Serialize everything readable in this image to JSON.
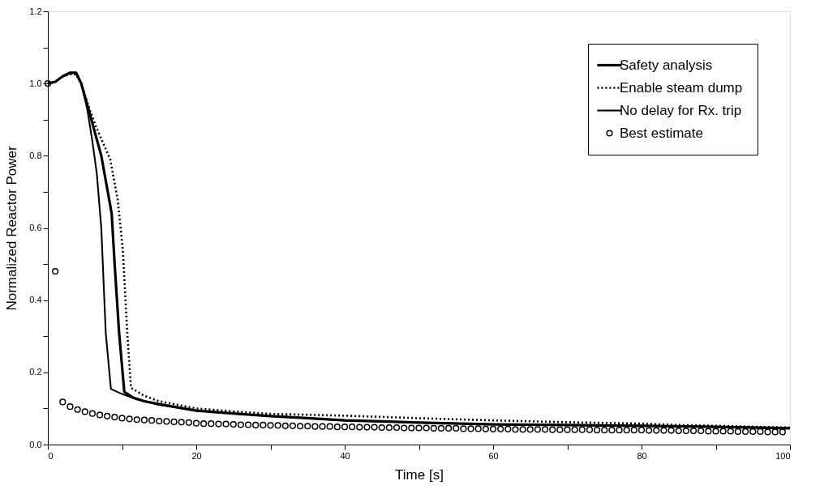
{
  "chart_data": {
    "type": "line",
    "xlabel": "Time [s]",
    "ylabel": "Normalized Reactor Power",
    "xlim": [
      0,
      100
    ],
    "ylim": [
      0,
      1.2
    ],
    "xticks": [
      0,
      {
        "value": 10,
        "label": null
      },
      20,
      {
        "value": 30,
        "label": null
      },
      40,
      {
        "value": 50,
        "label": null
      },
      60,
      {
        "value": 70,
        "label": null
      },
      80,
      {
        "value": 90,
        "label": null
      },
      100
    ],
    "yticks": [
      {
        "value": 0,
        "label": "0.0"
      },
      {
        "value": 0.1,
        "label": null
      },
      0.2,
      {
        "value": 0.3,
        "label": null
      },
      0.4,
      {
        "value": 0.5,
        "label": null
      },
      0.6,
      {
        "value": 0.7,
        "label": null
      },
      0.8,
      {
        "value": 0.9,
        "label": null
      },
      {
        "value": 1.0,
        "label": "1.0"
      },
      {
        "value": 1.1,
        "label": null
      },
      1.2
    ],
    "grid": false,
    "legend": "top right",
    "series": [
      {
        "name": "Safety analysis",
        "color": "#000000",
        "line_style": "solid",
        "x": [
          0,
          1,
          2,
          3,
          3.8,
          4.5,
          5.6,
          7.2,
          8.6,
          9.0,
          9.6,
          10.3,
          11.5,
          13,
          15,
          20,
          25,
          30,
          35,
          40,
          45,
          50,
          60,
          70,
          80,
          90,
          100
        ],
        "values": [
          1.0,
          1.005,
          1.02,
          1.03,
          1.03,
          1.0,
          0.92,
          0.8,
          0.64,
          0.5,
          0.31,
          0.146,
          0.13,
          0.12,
          0.112,
          0.094,
          0.086,
          0.079,
          0.073,
          0.067,
          0.064,
          0.061,
          0.056,
          0.054,
          0.052,
          0.049,
          0.045
        ]
      },
      {
        "name": "Enable steam dump",
        "color": "#000000",
        "line_style": "dotted",
        "x": [
          0,
          1,
          2,
          3,
          3.8,
          4.5,
          5.6,
          6.5,
          8.4,
          9.4,
          10.1,
          10.7,
          11.2,
          13,
          15,
          20,
          25,
          30,
          40,
          50,
          60,
          70,
          80,
          85,
          90,
          100
        ],
        "values": [
          1.0,
          1.005,
          1.02,
          1.025,
          1.025,
          1.0,
          0.93,
          0.88,
          0.79,
          0.68,
          0.54,
          0.31,
          0.157,
          0.135,
          0.12,
          0.1,
          0.092,
          0.085,
          0.08,
          0.073,
          0.067,
          0.062,
          0.058,
          0.054,
          0.052,
          0.047
        ]
      },
      {
        "name": "No delay for Rx. trip",
        "color": "#000000",
        "line_style": "solid",
        "x": [
          0,
          1,
          2,
          3,
          3.8,
          4.5,
          5.3,
          6.0,
          6.6,
          7.2,
          7.8,
          8.5,
          10,
          12,
          15,
          20,
          25,
          30,
          40,
          50,
          60,
          70,
          80,
          90,
          100
        ],
        "values": [
          1.0,
          1.005,
          1.02,
          1.03,
          1.03,
          1.0,
          0.93,
          0.84,
          0.75,
          0.6,
          0.31,
          0.154,
          0.14,
          0.125,
          0.11,
          0.094,
          0.086,
          0.079,
          0.067,
          0.061,
          0.056,
          0.054,
          0.052,
          0.049,
          0.045
        ]
      },
      {
        "name": "Best estimate",
        "color": "#000000",
        "type": "scatter",
        "marker": "circle",
        "x": [
          0,
          1,
          2,
          3,
          4,
          5,
          6,
          7,
          8,
          9,
          10,
          11,
          12,
          13,
          14,
          15,
          16,
          17,
          18,
          19,
          20,
          21,
          22,
          23,
          24,
          25,
          26,
          27,
          28,
          29,
          30,
          31,
          32,
          33,
          34,
          35,
          36,
          37,
          38,
          39,
          40,
          41,
          42,
          43,
          44,
          45,
          46,
          47,
          48,
          49,
          50,
          51,
          52,
          53,
          54,
          55,
          56,
          57,
          58,
          59,
          60,
          61,
          62,
          63,
          64,
          65,
          66,
          67,
          68,
          69,
          70,
          71,
          72,
          73,
          74,
          75,
          76,
          77,
          78,
          79,
          80,
          81,
          82,
          83,
          84,
          85,
          86,
          87,
          88,
          89,
          90,
          91,
          92,
          93,
          94,
          95,
          96,
          97,
          98,
          99
        ],
        "values": [
          1.0,
          0.48,
          0.118,
          0.105,
          0.097,
          0.091,
          0.086,
          0.082,
          0.079,
          0.076,
          0.073,
          0.071,
          0.069,
          0.068,
          0.067,
          0.065,
          0.064,
          0.063,
          0.062,
          0.061,
          0.059,
          0.058,
          0.058,
          0.057,
          0.057,
          0.056,
          0.055,
          0.055,
          0.054,
          0.054,
          0.053,
          0.053,
          0.052,
          0.052,
          0.051,
          0.051,
          0.05,
          0.05,
          0.05,
          0.049,
          0.049,
          0.049,
          0.048,
          0.048,
          0.048,
          0.047,
          0.047,
          0.047,
          0.046,
          0.046,
          0.046,
          0.046,
          0.045,
          0.045,
          0.045,
          0.045,
          0.044,
          0.044,
          0.044,
          0.043,
          0.043,
          0.043,
          0.043,
          0.042,
          0.042,
          0.042,
          0.042,
          0.042,
          0.041,
          0.041,
          0.041,
          0.041,
          0.041,
          0.041,
          0.04,
          0.04,
          0.04,
          0.04,
          0.04,
          0.04,
          0.04,
          0.039,
          0.039,
          0.039,
          0.039,
          0.038,
          0.038,
          0.038,
          0.038,
          0.037,
          0.037,
          0.037,
          0.037,
          0.036,
          0.036,
          0.036,
          0.036,
          0.035,
          0.035,
          0.035
        ]
      }
    ]
  }
}
